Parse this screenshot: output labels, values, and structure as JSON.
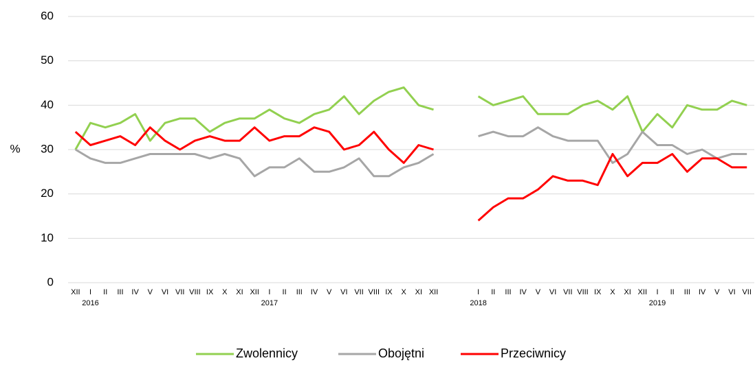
{
  "chart_data": {
    "type": "line",
    "y_label": "%",
    "categories": [
      "XII",
      "I",
      "II",
      "III",
      "IV",
      "V",
      "VI",
      "VII",
      "VIII",
      "IX",
      "X",
      "XI",
      "XII",
      "I",
      "II",
      "III",
      "IV",
      "V",
      "VI",
      "VII",
      "VIII",
      "IX",
      "X",
      "XI",
      "XII",
      null,
      null,
      "I",
      "II",
      "III",
      "IV",
      "V",
      "VI",
      "VII",
      "VIII",
      "IX",
      "X",
      "XI",
      "XII",
      "I",
      "II",
      "III",
      "IV",
      "V",
      "VI",
      "VII"
    ],
    "x_years": [
      null,
      "2016",
      null,
      null,
      null,
      null,
      null,
      null,
      null,
      null,
      null,
      null,
      null,
      "2017",
      null,
      null,
      null,
      null,
      null,
      null,
      null,
      null,
      null,
      null,
      null,
      null,
      null,
      "2018",
      null,
      null,
      null,
      null,
      null,
      null,
      null,
      null,
      null,
      null,
      null,
      "2019",
      null,
      null,
      null,
      null,
      null,
      null
    ],
    "series": [
      {
        "name": "Zwolennicy",
        "color": "#92d050",
        "values": [
          30,
          36,
          35,
          36,
          38,
          32,
          36,
          37,
          37,
          34,
          36,
          37,
          37,
          39,
          37,
          36,
          38,
          39,
          42,
          38,
          41,
          43,
          44,
          40,
          39,
          null,
          null,
          42,
          40,
          41,
          42,
          38,
          38,
          38,
          40,
          41,
          39,
          42,
          34,
          38,
          35,
          40,
          39,
          39,
          41,
          40
        ]
      },
      {
        "name": "Obojętni",
        "color": "#a6a6a6",
        "values": [
          30,
          28,
          27,
          27,
          28,
          29,
          29,
          29,
          29,
          28,
          29,
          28,
          24,
          26,
          26,
          28,
          25,
          25,
          26,
          28,
          24,
          24,
          26,
          27,
          29,
          null,
          null,
          33,
          34,
          33,
          33,
          35,
          33,
          32,
          32,
          32,
          27,
          29,
          34,
          31,
          31,
          29,
          30,
          28,
          29,
          29
        ]
      },
      {
        "name": "Przeciwnicy",
        "color": "#ff0000",
        "values": [
          34,
          31,
          32,
          33,
          31,
          35,
          32,
          30,
          32,
          33,
          32,
          32,
          35,
          32,
          33,
          33,
          35,
          34,
          30,
          31,
          34,
          30,
          27,
          31,
          30,
          null,
          null,
          14,
          17,
          19,
          19,
          21,
          24,
          23,
          23,
          22,
          29,
          24,
          27,
          27,
          29,
          25,
          28,
          28,
          26,
          26
        ]
      }
    ],
    "ylim": [
      0,
      60
    ],
    "yticks": [
      0,
      10,
      20,
      30,
      40,
      50,
      60
    ],
    "grid": true,
    "legend": "bottom"
  }
}
